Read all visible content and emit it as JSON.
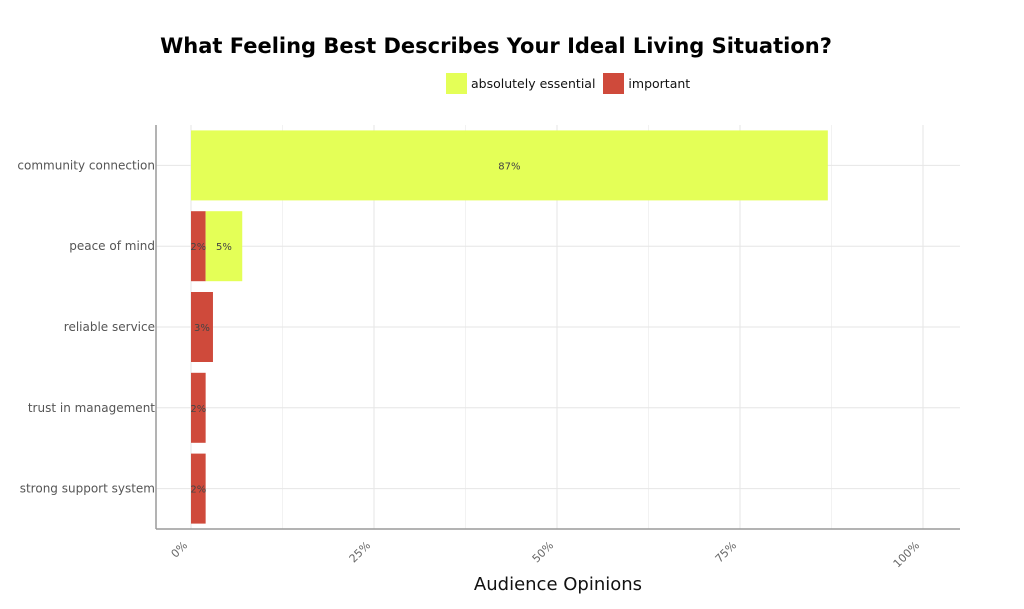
{
  "chart_data": {
    "type": "bar",
    "orientation": "horizontal",
    "stacked": true,
    "title": "What Feeling Best Describes Your Ideal Living Situation?",
    "xlabel": "Audience Opinions",
    "ylabel": "",
    "xlim": [
      0,
      100
    ],
    "x_ticks": [
      "0%",
      "25%",
      "50%",
      "75%",
      "100%"
    ],
    "grid": true,
    "legend_position": "top-center",
    "categories": [
      "community connection",
      "peace of mind",
      "reliable service",
      "trust in management",
      "strong support system"
    ],
    "series": [
      {
        "name": "important",
        "color": "#cf4a3b",
        "values": [
          0,
          2,
          3,
          2,
          2
        ]
      },
      {
        "name": "absolutely essential",
        "color": "#e4ff57",
        "values": [
          87,
          5,
          0,
          0,
          0
        ]
      }
    ],
    "labels": {
      "important": [
        "",
        "2%",
        "3%",
        "2%",
        "2%"
      ],
      "absolutely essential": [
        "87%",
        "5%",
        "",
        "",
        ""
      ]
    },
    "legend_order": [
      "absolutely essential",
      "important"
    ]
  }
}
